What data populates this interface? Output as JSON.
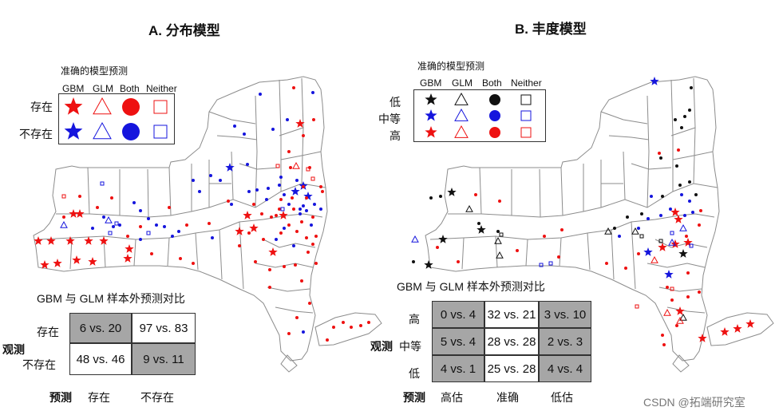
{
  "panel_a": {
    "title": "A. 分布模型",
    "legend": {
      "title": "准确的模型预测",
      "columns": [
        "GBM",
        "GLM",
        "Both",
        "Neither"
      ],
      "rows": [
        "存在",
        "不存在"
      ]
    },
    "table": {
      "title": "GBM 与 GLM 样本外预测对比",
      "row_axis": "观测",
      "col_axis": "预测",
      "row_labels": [
        "存在",
        "不存在"
      ],
      "col_labels": [
        "存在",
        "不存在"
      ],
      "cells": [
        [
          "6 vs. 20",
          "97 vs. 83"
        ],
        [
          "48 vs. 46",
          "9 vs. 11"
        ]
      ]
    }
  },
  "panel_b": {
    "title": "B. 丰度模型",
    "legend": {
      "title": "准确的模型预测",
      "columns": [
        "GBM",
        "GLM",
        "Both",
        "Neither"
      ],
      "rows": [
        "低",
        "中等",
        "高"
      ]
    },
    "table": {
      "title": "GBM 与 GLM 样本外预测对比",
      "row_axis": "观测",
      "col_axis": "预测",
      "row_labels": [
        "高",
        "中等",
        "低"
      ],
      "col_labels": [
        "高估",
        "准确",
        "低估"
      ],
      "cells": [
        [
          "0 vs. 4",
          "32 vs. 21",
          "3 vs. 10"
        ],
        [
          "5 vs. 4",
          "28 vs. 28",
          "2 vs. 3"
        ],
        [
          "4 vs. 1",
          "25 vs. 28",
          "4 vs. 4"
        ]
      ]
    }
  },
  "watermark": "CSDN @拓端研究室",
  "colors": {
    "red": "#ee1111",
    "blue": "#1515dd",
    "black": "#111111",
    "cell_gray": "#a6a6a6"
  }
}
